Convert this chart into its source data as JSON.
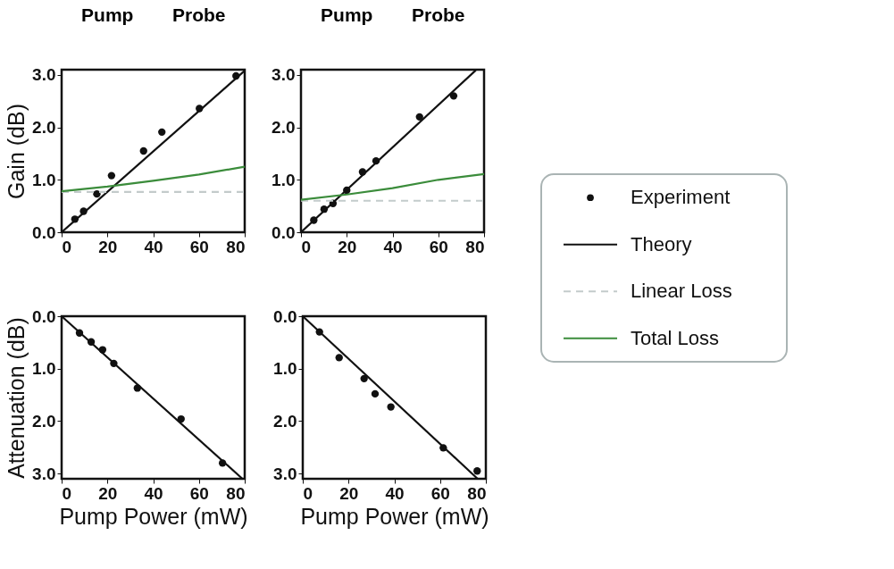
{
  "chart_data": [
    {
      "type": "line",
      "ylabel": "Gain (dB)",
      "annotations": [
        "Pump",
        "Probe"
      ],
      "xlim": [
        0,
        80
      ],
      "ylim": [
        0,
        3.1
      ],
      "xticks": [
        0,
        20,
        40,
        60,
        80
      ],
      "yticks": [
        {
          "value": 0,
          "label": "0.0"
        },
        {
          "value": 1,
          "label": "1.0"
        },
        {
          "value": 2,
          "label": "2.0"
        },
        {
          "value": 3,
          "label": "3.0"
        }
      ],
      "grid": false,
      "legend": "right",
      "series": [
        {
          "name": "Experiment",
          "type": "scatter",
          "marker": "circle",
          "color": "#111111",
          "x": [
            5.8,
            9.6,
            15.4,
            21.8,
            35.8,
            43.8,
            60.2,
            76.2
          ],
          "values": [
            0.25,
            0.4,
            0.73,
            1.08,
            1.55,
            1.91,
            2.36,
            2.98
          ]
        },
        {
          "name": "Theory",
          "color": "#111111",
          "x": [
            0,
            80
          ],
          "values": [
            0,
            3.08
          ]
        },
        {
          "name": "Linear Loss",
          "line_style": "dashed",
          "color": "#c3cbcb",
          "x": [
            0,
            80
          ],
          "values": [
            0.77,
            0.77
          ]
        },
        {
          "name": "Total Loss",
          "color": "#3b8c3b",
          "x": [
            0,
            20,
            40,
            60,
            80
          ],
          "values": [
            0.78,
            0.87,
            0.98,
            1.1,
            1.25
          ]
        }
      ]
    },
    {
      "type": "line",
      "annotations": [
        "Pump",
        "Probe"
      ],
      "xlim": [
        0,
        80
      ],
      "ylim": [
        0,
        3.1
      ],
      "xticks": [
        0,
        20,
        40,
        60,
        80
      ],
      "yticks": [
        {
          "value": 0,
          "label": "0.0"
        },
        {
          "value": 1,
          "label": "1.0"
        },
        {
          "value": 2,
          "label": "2.0"
        },
        {
          "value": 3,
          "label": "3.0"
        }
      ],
      "grid": false,
      "series": [
        {
          "type": "scatter",
          "marker": "circle",
          "color": "#111111",
          "x": [
            5.6,
            10.1,
            14.0,
            20.0,
            26.9,
            32.8,
            51.8,
            66.7
          ],
          "values": [
            0.23,
            0.44,
            0.55,
            0.8,
            1.15,
            1.36,
            2.2,
            2.6
          ]
        },
        {
          "color": "#111111",
          "x": [
            0,
            76.4
          ],
          "values": [
            0,
            3.09
          ]
        },
        {
          "line_style": "dashed",
          "color": "#c3cbcb",
          "x": [
            0,
            80
          ],
          "values": [
            0.6,
            0.6
          ]
        },
        {
          "color": "#3b8c3b",
          "x": [
            0,
            20,
            40,
            60,
            80
          ],
          "values": [
            0.62,
            0.72,
            0.84,
            1.0,
            1.11
          ]
        }
      ]
    },
    {
      "type": "line",
      "xlabel": "Pump Power (mW)",
      "ylabel": "Attenuation (dB)",
      "xlim": [
        0,
        80
      ],
      "ylim": [
        3.1,
        0
      ],
      "xticks": [
        0,
        20,
        40,
        60,
        80
      ],
      "yticks": [
        {
          "value": 0,
          "label": "0.0"
        },
        {
          "value": 1,
          "label": "1.0"
        },
        {
          "value": 2,
          "label": "2.0"
        },
        {
          "value": 3,
          "label": "3.0"
        }
      ],
      "grid": false,
      "series": [
        {
          "type": "scatter",
          "marker": "circle",
          "color": "#111111",
          "x": [
            7.8,
            12.9,
            17.9,
            22.8,
            33.1,
            52.2,
            70.3
          ],
          "values": [
            0.32,
            0.49,
            0.64,
            0.9,
            1.37,
            1.96,
            2.8
          ]
        },
        {
          "color": "#111111",
          "x": [
            0,
            79
          ],
          "values": [
            0,
            3.1
          ]
        }
      ]
    },
    {
      "type": "line",
      "xlabel": "Pump Power (mW)",
      "xlim": [
        0,
        80
      ],
      "ylim": [
        3.1,
        0
      ],
      "xticks": [
        0,
        20,
        40,
        60,
        80
      ],
      "yticks": [
        {
          "value": 0,
          "label": "0.0"
        },
        {
          "value": 1,
          "label": "1.0"
        },
        {
          "value": 2,
          "label": "2.0"
        },
        {
          "value": 3,
          "label": "3.0"
        }
      ],
      "grid": false,
      "series": [
        {
          "type": "scatter",
          "marker": "circle",
          "color": "#111111",
          "x": [
            7.3,
            15.9,
            26.8,
            31.6,
            38.5,
            61.4,
            76.2
          ],
          "values": [
            0.3,
            0.79,
            1.19,
            1.48,
            1.73,
            2.51,
            2.95
          ]
        },
        {
          "color": "#111111",
          "x": [
            0,
            76.4
          ],
          "values": [
            0,
            3.1
          ]
        }
      ]
    }
  ]
}
